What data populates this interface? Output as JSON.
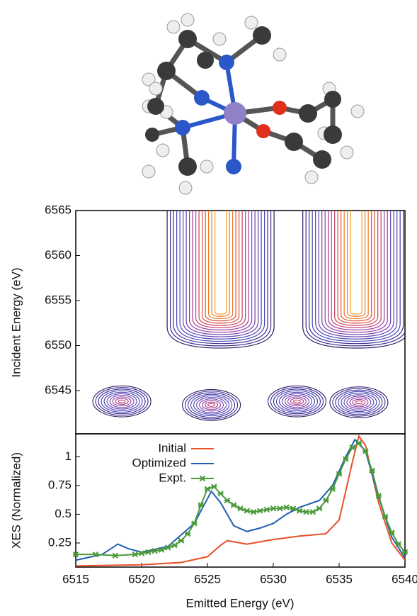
{
  "chart_data": [
    {
      "type": "contour",
      "ylabel": "Incident Energy (eV)",
      "xlim": [
        6515,
        6540
      ],
      "ylim": [
        6540.2,
        6565
      ],
      "yticks": [
        6545,
        6550,
        6555,
        6560,
        6565
      ],
      "peaks_x": [
        6518.5,
        6525.3,
        6531.8,
        6536.5
      ],
      "peaks_y": [
        6543.8,
        6543.4,
        6543.8,
        6543.7
      ],
      "ridges_x": [
        6526,
        6536.3
      ]
    },
    {
      "type": "line",
      "xlabel": "Emitted Energy (eV)",
      "ylabel": "XES (Normalized)",
      "xlim": [
        6515,
        6540
      ],
      "xticks": [
        6515,
        6520,
        6525,
        6530,
        6535,
        6540
      ],
      "ylim": [
        0.04,
        1.2
      ],
      "yticks": [
        0.25,
        0.5,
        0.75,
        1
      ],
      "series": [
        {
          "name": "Initial",
          "color": "#e8502a",
          "marker": false,
          "x": [
            6515,
            6520,
            6523,
            6525,
            6526,
            6526.5,
            6528,
            6530,
            6532,
            6534,
            6535,
            6536,
            6536.5,
            6537,
            6538,
            6539,
            6540
          ],
          "values": [
            0.05,
            0.06,
            0.08,
            0.13,
            0.23,
            0.27,
            0.24,
            0.28,
            0.31,
            0.33,
            0.45,
            0.95,
            1.18,
            1.1,
            0.6,
            0.25,
            0.1
          ]
        },
        {
          "name": "Optimized",
          "color": "#1f5fb0",
          "marker": false,
          "x": [
            6515,
            6517,
            6518.2,
            6519,
            6520,
            6522,
            6524,
            6525.3,
            6526,
            6527,
            6528,
            6529,
            6530,
            6531,
            6532,
            6533.5,
            6534.5,
            6535.5,
            6536.2,
            6537,
            6538,
            6539,
            6540
          ],
          "values": [
            0.1,
            0.15,
            0.24,
            0.2,
            0.17,
            0.22,
            0.42,
            0.7,
            0.6,
            0.4,
            0.35,
            0.38,
            0.42,
            0.5,
            0.56,
            0.62,
            0.75,
            1.0,
            1.15,
            1.05,
            0.65,
            0.3,
            0.12
          ]
        },
        {
          "name": "Expt.",
          "color": "#4a9a3a",
          "marker": true,
          "x": [
            6515,
            6516.5,
            6518,
            6519.5,
            6520,
            6520.5,
            6521,
            6521.5,
            6522,
            6522.5,
            6523,
            6523.5,
            6524,
            6524.5,
            6525,
            6525.5,
            6526,
            6526.5,
            6527,
            6527.5,
            6528,
            6528.5,
            6529,
            6529.5,
            6530,
            6530.5,
            6531,
            6531.5,
            6532,
            6532.5,
            6533,
            6533.5,
            6534,
            6534.5,
            6535,
            6535.5,
            6536,
            6536.5,
            6537,
            6537.5,
            6538,
            6538.5,
            6539,
            6539.5,
            6540
          ],
          "values": [
            0.15,
            0.15,
            0.14,
            0.15,
            0.16,
            0.17,
            0.18,
            0.19,
            0.21,
            0.23,
            0.27,
            0.33,
            0.42,
            0.58,
            0.72,
            0.74,
            0.68,
            0.62,
            0.58,
            0.55,
            0.53,
            0.52,
            0.53,
            0.54,
            0.55,
            0.55,
            0.56,
            0.55,
            0.53,
            0.52,
            0.52,
            0.55,
            0.62,
            0.72,
            0.85,
            0.98,
            1.08,
            1.12,
            1.05,
            0.88,
            0.66,
            0.48,
            0.34,
            0.24,
            0.17
          ]
        }
      ]
    }
  ]
}
